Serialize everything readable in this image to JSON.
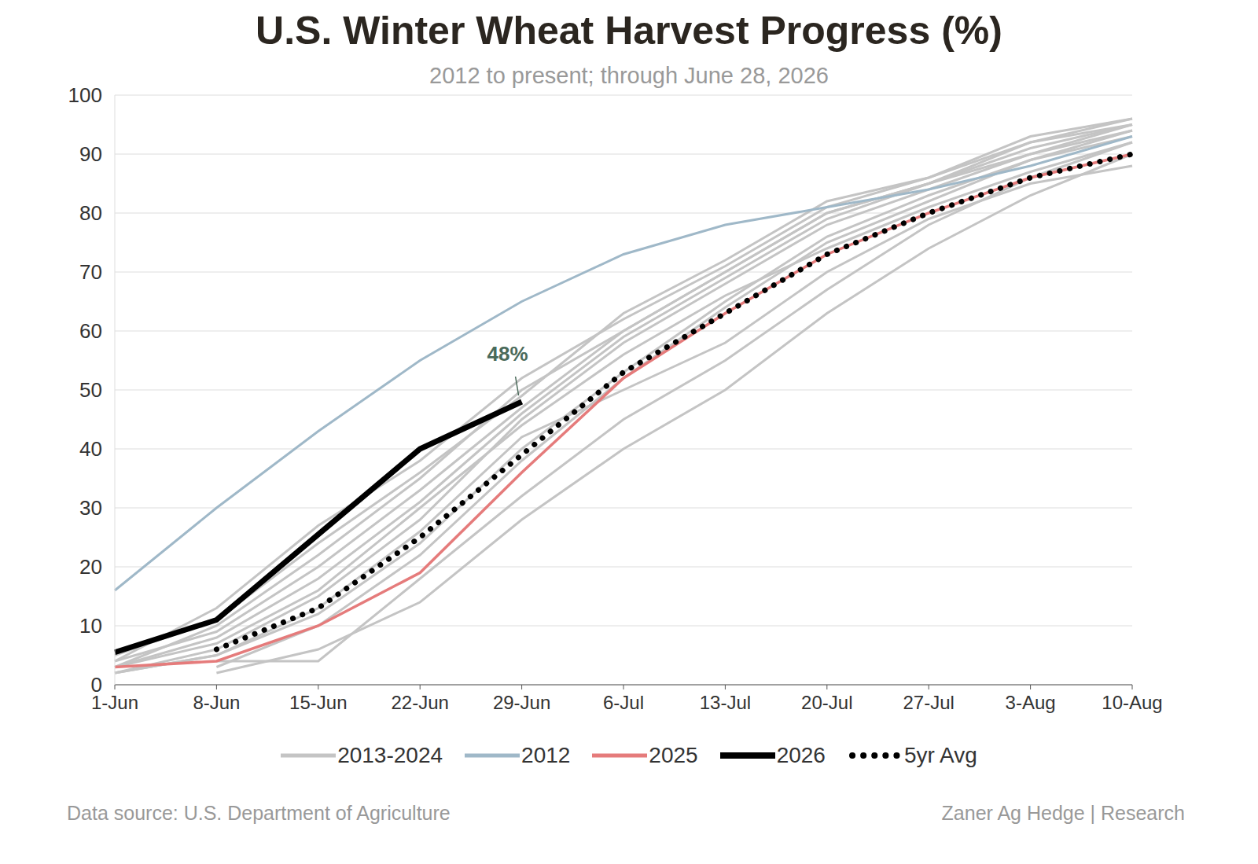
{
  "chart_data": {
    "type": "line",
    "title": "U.S. Winter Wheat Harvest Progress (%)",
    "subtitle": "2012 to present; through June 28, 2026",
    "source": "Data source: U.S. Department of Agriculture",
    "credit": "Zaner Ag Hedge | Research",
    "categories": [
      "1-Jun",
      "8-Jun",
      "15-Jun",
      "22-Jun",
      "29-Jun",
      "6-Jul",
      "13-Jul",
      "20-Jul",
      "27-Jul",
      "3-Aug",
      "10-Aug"
    ],
    "ylim": [
      0,
      100
    ],
    "yticks": [
      0,
      10,
      20,
      30,
      40,
      50,
      60,
      70,
      80,
      90,
      100
    ],
    "grid": true,
    "legend": "bottom",
    "series": [
      {
        "name": "2013-2024",
        "color": "#c4c4c4",
        "line_style": "solid",
        "values": [
          [
            3,
            10,
            22,
            35,
            50,
            60,
            70,
            80,
            85,
            92,
            96
          ],
          [
            4,
            13,
            27,
            38,
            52,
            62,
            71,
            81,
            86,
            93,
            96
          ],
          [
            2,
            6,
            15,
            28,
            45,
            58,
            68,
            78,
            84,
            90,
            95
          ],
          [
            null,
            3,
            10,
            22,
            38,
            52,
            64,
            75,
            82,
            89,
            94
          ],
          [
            3,
            8,
            18,
            31,
            46,
            59,
            69,
            79,
            85,
            91,
            95
          ],
          [
            null,
            2,
            6,
            14,
            28,
            40,
            50,
            63,
            74,
            83,
            90
          ],
          [
            2,
            5,
            12,
            24,
            40,
            53,
            65,
            76,
            83,
            89,
            93
          ],
          [
            null,
            4,
            4,
            18,
            32,
            45,
            55,
            67,
            78,
            86,
            92
          ],
          [
            4,
            9,
            20,
            33,
            47,
            60,
            70,
            80,
            85,
            90,
            94
          ],
          [
            3,
            7,
            16,
            30,
            44,
            56,
            66,
            74,
            81,
            87,
            92
          ],
          [
            2,
            5,
            13,
            26,
            42,
            50,
            58,
            70,
            79,
            85,
            88
          ],
          [
            5,
            11,
            24,
            36,
            49,
            63,
            72,
            82,
            86,
            92,
            95
          ]
        ]
      },
      {
        "name": "2012",
        "color": "#9fb8c8",
        "line_style": "solid",
        "values": [
          16,
          30,
          43,
          55,
          65,
          73,
          78,
          81,
          84,
          88,
          93
        ]
      },
      {
        "name": "2025",
        "color": "#e57b7b",
        "line_style": "solid",
        "values": [
          3,
          4,
          10,
          19,
          36,
          52,
          63,
          73,
          80,
          86,
          90
        ]
      },
      {
        "name": "2026",
        "color": "#000000",
        "line_style": "solid",
        "values": [
          5.5,
          11,
          25.5,
          40,
          48,
          null,
          null,
          null,
          null,
          null,
          null
        ]
      },
      {
        "name": "5yr Avg",
        "color": "#000000",
        "line_style": "dotted",
        "values": [
          null,
          6,
          13,
          25,
          39,
          53,
          63,
          73,
          80,
          86,
          90
        ]
      }
    ],
    "annotations": [
      {
        "text": "48%",
        "x": "29-Jun",
        "value": 48
      }
    ]
  }
}
